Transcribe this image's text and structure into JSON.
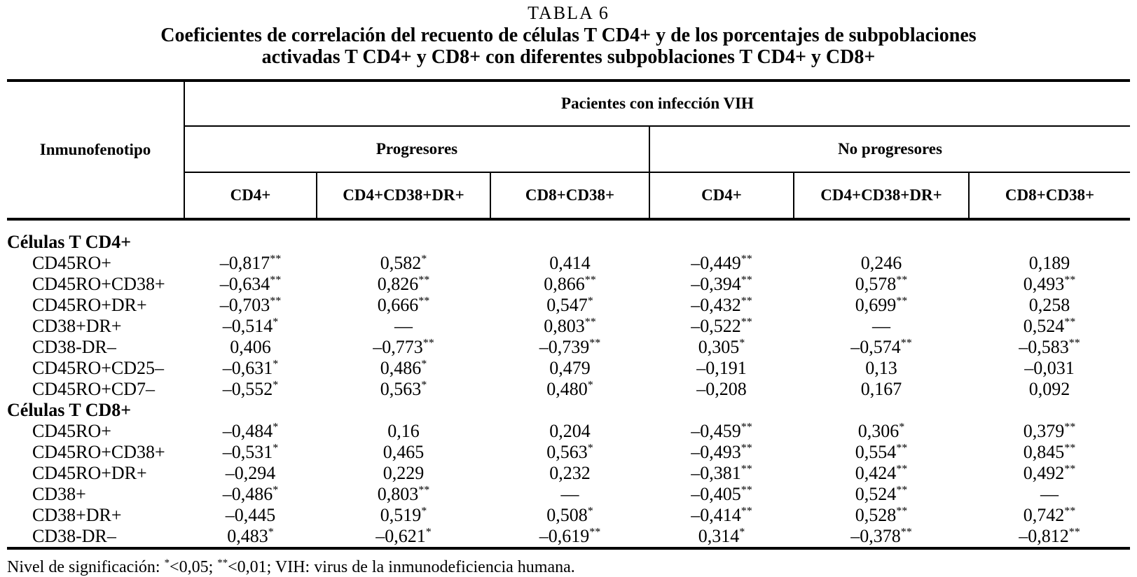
{
  "page": {
    "table_label": "TABLA 6",
    "title_lines": [
      "Coeficientes de correlación del recuento de células T CD4+ y de los porcentajes de subpoblaciones",
      "activadas T CD4+ y CD8+ con diferentes subpoblaciones T CD4+ y CD8+"
    ]
  },
  "table": {
    "corner_header": "Inmunofenotipo",
    "top_header": "Pacientes con infección VIH",
    "group_headers": [
      "Progresores",
      "No progresores"
    ],
    "column_headers": [
      "CD4+",
      "CD4+CD38+DR+",
      "CD8+CD38+",
      "CD4+",
      "CD4+CD38+DR+",
      "CD8+CD38+"
    ],
    "sections": [
      {
        "label": "Células T CD4+",
        "rows": [
          {
            "label": "CD45RO+",
            "values": [
              "–0,817**",
              "0,582*",
              "0,414",
              "–0,449**",
              "0,246",
              "0,189"
            ]
          },
          {
            "label": "CD45RO+CD38+",
            "values": [
              "–0,634**",
              "0,826**",
              "0,866**",
              "–0,394**",
              "0,578**",
              "0,493**"
            ]
          },
          {
            "label": "CD45RO+DR+",
            "values": [
              "–0,703**",
              "0,666**",
              "0,547*",
              "–0,432**",
              "0,699**",
              "0,258"
            ]
          },
          {
            "label": "CD38+DR+",
            "values": [
              "–0,514*",
              "—",
              "0,803**",
              "–0,522**",
              "—",
              "0,524**"
            ]
          },
          {
            "label": "CD38-DR–",
            "values": [
              "0,406",
              "–0,773**",
              "–0,739**",
              "0,305*",
              "–0,574**",
              "–0,583**"
            ]
          },
          {
            "label": "CD45RO+CD25–",
            "values": [
              "–0,631*",
              "0,486*",
              "0,479",
              "–0,191",
              "0,13",
              "–0,031"
            ]
          },
          {
            "label": "CD45RO+CD7–",
            "values": [
              "–0,552*",
              "0,563*",
              "0,480*",
              "–0,208",
              "0,167",
              "0,092"
            ]
          }
        ]
      },
      {
        "label": "Células T CD8+",
        "rows": [
          {
            "label": "CD45RO+",
            "values": [
              "–0,484*",
              "0,16",
              "0,204",
              "–0,459**",
              "0,306*",
              "0,379**"
            ]
          },
          {
            "label": "CD45RO+CD38+",
            "values": [
              "–0,531*",
              "0,465",
              "0,563*",
              "–0,493**",
              "0,554**",
              "0,845**"
            ]
          },
          {
            "label": "CD45RO+DR+",
            "values": [
              "–0,294",
              "0,229",
              "0,232",
              "–0,381**",
              "0,424**",
              "0,492**"
            ]
          },
          {
            "label": "CD38+",
            "values": [
              "–0,486*",
              "0,803**",
              "—",
              "–0,405**",
              "0,524**",
              "—"
            ]
          },
          {
            "label": "CD38+DR+",
            "values": [
              "–0,445",
              "0,519*",
              "0,508*",
              "–0,414**",
              "0,528**",
              "0,742**"
            ]
          },
          {
            "label": "CD38-DR–",
            "values": [
              "0,483*",
              "–0,621*",
              "–0,619**",
              "0,314*",
              "–0,378**",
              "–0,812**"
            ]
          }
        ]
      }
    ]
  },
  "footnote": "Nivel de significación: *<0,05; **<0,01; VIH: virus de la inmunodeficiencia humana.",
  "colors": {
    "background": "#ffffff",
    "text": "#000000",
    "rule": "#000000"
  }
}
